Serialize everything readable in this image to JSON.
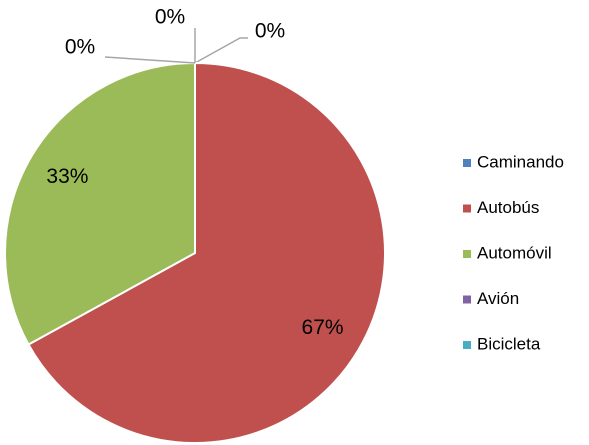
{
  "chart_data": {
    "type": "pie",
    "categories": [
      "Caminando",
      "Autobús",
      "Automóvil",
      "Avión",
      "Bicicleta"
    ],
    "values": [
      0,
      67,
      33,
      0,
      0
    ],
    "value_labels": [
      "0%",
      "67%",
      "33%",
      "0%",
      "0%"
    ],
    "colors": [
      "#4f81bd",
      "#c0504d",
      "#9bbb59",
      "#8064a2",
      "#4bacc6"
    ],
    "legend": "right"
  }
}
